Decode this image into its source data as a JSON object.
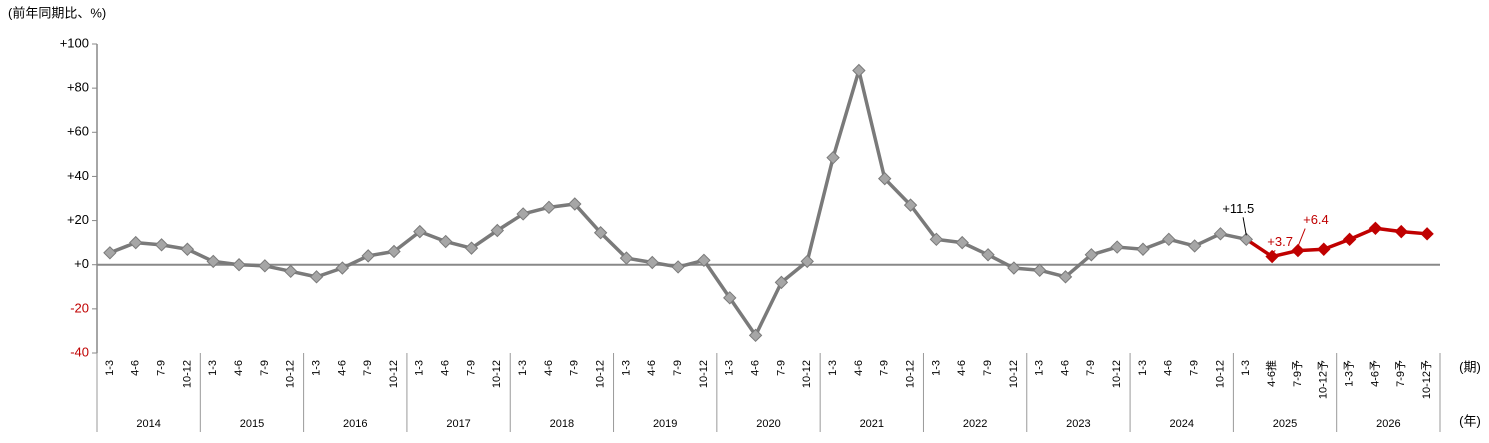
{
  "chart_data": {
    "type": "line",
    "y_axis_label": "(前年同期比、%)",
    "x_axis_label": "(期)",
    "year_axis_label": "(年)",
    "categories": [
      "1-3",
      "4-6",
      "7-9",
      "10-12",
      "1-3",
      "4-6",
      "7-9",
      "10-12",
      "1-3",
      "4-6",
      "7-9",
      "10-12",
      "1-3",
      "4-6",
      "7-9",
      "10-12",
      "1-3",
      "4-6",
      "7-9",
      "10-12",
      "1-3",
      "4-6",
      "7-9",
      "10-12",
      "1-3",
      "4-6",
      "7-9",
      "10-12",
      "1-3",
      "4-6",
      "7-9",
      "10-12",
      "1-3",
      "4-6",
      "7-9",
      "10-12",
      "1-3",
      "4-6",
      "7-9",
      "10-12",
      "1-3",
      "4-6",
      "7-9",
      "10-12",
      "1-3",
      "4-6推",
      "7-9予",
      "10-12予",
      "1-3予",
      "4-6予",
      "7-9予",
      "10-12予"
    ],
    "years": [
      "2014",
      "2015",
      "2016",
      "2017",
      "2018",
      "2019",
      "2020",
      "2021",
      "2022",
      "2023",
      "2024",
      "2025",
      "2026"
    ],
    "series": [
      {
        "color": "#7a7a7a",
        "marker_color": "#a6a6a6",
        "highlight_from": 45,
        "highlight_color": "#c00000",
        "values": [
          5.4,
          10,
          9,
          7,
          1.5,
          0,
          -0.5,
          -3,
          -5.5,
          -1.5,
          4,
          6,
          15,
          10.5,
          7.5,
          15.5,
          23,
          26,
          27.5,
          14.5,
          3,
          1,
          -1,
          2,
          -15,
          -32,
          -8,
          1.5,
          48.5,
          88,
          39,
          27,
          11.5,
          10,
          4.5,
          -1.5,
          -2.5,
          -5.5,
          4.5,
          8,
          7,
          11.5,
          8.5,
          14,
          11.5,
          3.7,
          6.4,
          7,
          11.5,
          16.5,
          15,
          14
        ],
        "value_labels": [
          null,
          null,
          null,
          null,
          null,
          null,
          null,
          null,
          null,
          null,
          null,
          null,
          null,
          null,
          null,
          null,
          null,
          null,
          null,
          null,
          null,
          null,
          null,
          null,
          null,
          null,
          null,
          null,
          null,
          null,
          null,
          null,
          null,
          null,
          null,
          null,
          null,
          null,
          null,
          null,
          null,
          null,
          null,
          null,
          "+11.5",
          "+3.7",
          "+6.4",
          null,
          null,
          null,
          null,
          null
        ]
      }
    ],
    "ylim": [
      -40,
      100
    ],
    "yticks": [
      {
        "value": 100,
        "label": "+100"
      },
      {
        "value": 80,
        "label": "+80"
      },
      {
        "value": 60,
        "label": "+60"
      },
      {
        "value": 40,
        "label": "+40"
      },
      {
        "value": 20,
        "label": "+20"
      },
      {
        "value": 0,
        "label": "+0"
      },
      -20,
      -40
    ]
  }
}
